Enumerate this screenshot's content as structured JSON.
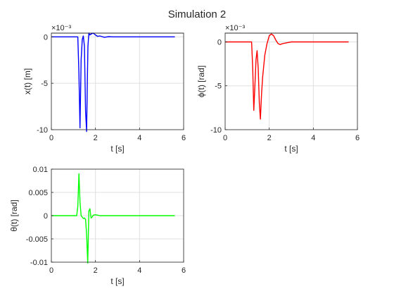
{
  "figure": {
    "title": "Simulation 2"
  },
  "chart_data": [
    {
      "type": "line",
      "xlabel": "t [s]",
      "ylabel": "x(t) [m]",
      "y_exponent": "×10⁻³",
      "xlim": [
        0,
        6
      ],
      "ylim": [
        -0.01,
        0.0004
      ],
      "xticks": [
        0,
        2,
        4,
        6
      ],
      "xtick_labels": [
        "0",
        "2",
        "4",
        "6"
      ],
      "yticks": [
        0,
        -0.005,
        -0.01
      ],
      "ytick_labels": [
        "0",
        "-5",
        "-10"
      ],
      "grid": true,
      "color": "#0000ff",
      "series": [
        {
          "x": [
            0,
            1.2,
            1.25,
            1.3,
            1.35,
            1.4,
            1.45,
            1.5,
            1.55,
            1.6,
            1.63,
            1.66,
            1.7,
            1.75,
            1.8,
            1.9,
            2.0,
            2.1,
            2.2,
            2.4,
            2.6,
            2.8,
            3.0,
            4.0,
            5.6
          ],
          "y": [
            0,
            0,
            -0.004,
            -0.0098,
            -0.0025,
            -0.0003,
            0.0001,
            -0.001,
            -0.008,
            -0.0102,
            -0.005,
            -0.001,
            0.0004,
            0.0002,
            0.0003,
            0.0004,
            0.0002,
            5e-05,
            0.0001,
            -5e-05,
            2e-05,
            0,
            0,
            0,
            0
          ]
        }
      ]
    },
    {
      "type": "line",
      "xlabel": "t [s]",
      "ylabel": "ϕ(t) [rad]",
      "y_exponent": "×10⁻³",
      "xlim": [
        0,
        6
      ],
      "ylim": [
        -0.01,
        0.001
      ],
      "xticks": [
        0,
        2,
        4,
        6
      ],
      "xtick_labels": [
        "0",
        "2",
        "4",
        "6"
      ],
      "yticks": [
        0,
        -0.005,
        -0.01
      ],
      "ytick_labels": [
        "0",
        "-5",
        "-10"
      ],
      "grid": true,
      "color": "#ff0000",
      "series": [
        {
          "x": [
            0,
            1.2,
            1.25,
            1.3,
            1.35,
            1.4,
            1.45,
            1.5,
            1.55,
            1.6,
            1.65,
            1.7,
            1.8,
            1.9,
            2.0,
            2.1,
            2.2,
            2.3,
            2.4,
            2.5,
            2.6,
            2.8,
            3.0,
            3.2,
            4.0,
            5.6
          ],
          "y": [
            0,
            0,
            -0.003,
            -0.0078,
            -0.005,
            -0.002,
            -0.001,
            -0.003,
            -0.007,
            -0.0088,
            -0.006,
            -0.004,
            -0.0015,
            -0.0002,
            0.0007,
            0.0009,
            0.0007,
            0.0002,
            -0.0002,
            -0.0003,
            -0.0002,
            -0.0001,
            0,
            0,
            0,
            0
          ]
        }
      ]
    },
    {
      "type": "line",
      "xlabel": "t [s]",
      "ylabel": "θ(t) [rad]",
      "xlim": [
        0,
        6
      ],
      "ylim": [
        -0.01,
        0.01
      ],
      "xticks": [
        0,
        2,
        4,
        6
      ],
      "xtick_labels": [
        "0",
        "2",
        "4",
        "6"
      ],
      "yticks": [
        0.01,
        0.005,
        0,
        -0.005,
        -0.01
      ],
      "ytick_labels": [
        "0.01",
        "0.005",
        "0",
        "-0.005",
        "-0.01"
      ],
      "grid": true,
      "color": "#00ff00",
      "series": [
        {
          "x": [
            0,
            1.15,
            1.2,
            1.25,
            1.3,
            1.35,
            1.4,
            1.45,
            1.5,
            1.55,
            1.6,
            1.65,
            1.7,
            1.75,
            1.8,
            1.85,
            1.9,
            2.0,
            2.1,
            2.2,
            2.5,
            3.0,
            4.0,
            5.6
          ],
          "y": [
            0,
            0,
            0.002,
            0.009,
            0.003,
            0.0,
            -0.0003,
            -0.0006,
            -0.0005,
            -0.0008,
            -0.004,
            -0.0102,
            0.001,
            0.0015,
            -0.0005,
            -0.0003,
            0.0001,
            0.0002,
            0.0001,
            0,
            0,
            0,
            0,
            0
          ]
        }
      ]
    }
  ]
}
